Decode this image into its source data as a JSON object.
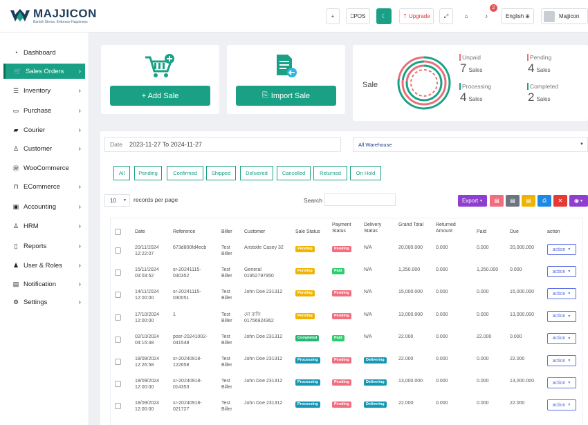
{
  "brand": {
    "title": "MAJJICON",
    "tagline": "Banish Stress, Embrace Happiness"
  },
  "topbar": {
    "plus": "+",
    "pos": "POS",
    "upgrade": "Upgrade",
    "notif_count": "2",
    "language": "English",
    "user": "Majjicon"
  },
  "sidebar": {
    "items": [
      {
        "label": "Dashboard",
        "icon": "dashboard-icon",
        "chev": ""
      },
      {
        "label": "Sales Orders",
        "icon": "cart-icon",
        "chev": "›"
      },
      {
        "label": "Inventory",
        "icon": "list-icon",
        "chev": "›"
      },
      {
        "label": "Purchase",
        "icon": "card-icon",
        "chev": "›"
      },
      {
        "label": "Courier",
        "icon": "truck-icon",
        "chev": "›"
      },
      {
        "label": "Customer",
        "icon": "user-icon",
        "chev": "›"
      },
      {
        "label": "WooCommerce",
        "icon": "wordpress-icon",
        "chev": ""
      },
      {
        "label": "ECommerce",
        "icon": "bag-icon",
        "chev": "›"
      },
      {
        "label": "Accounting",
        "icon": "briefcase-icon",
        "chev": "›"
      },
      {
        "label": "HRM",
        "icon": "users-icon",
        "chev": "›"
      },
      {
        "label": "Reports",
        "icon": "file-icon",
        "chev": "›"
      },
      {
        "label": "User & Roles",
        "icon": "person-icon",
        "chev": "›"
      },
      {
        "label": "Notification",
        "icon": "notification-icon",
        "chev": "›"
      },
      {
        "label": "Settings",
        "icon": "gear-icon",
        "chev": "›"
      }
    ]
  },
  "actions": {
    "add_sale": "+ Add Sale",
    "import_sale": "Import Sale"
  },
  "sale_summary": {
    "label": "Sale",
    "stats": [
      {
        "label": "Unpaid",
        "value": "7",
        "unit": "Sales",
        "color": "#e8707a"
      },
      {
        "label": "Pending",
        "value": "4",
        "unit": "Sales",
        "color": "#e8707a"
      },
      {
        "label": "Processing",
        "value": "4",
        "unit": "Sales",
        "color": "#1aa185"
      },
      {
        "label": "Completed",
        "value": "2",
        "unit": "Sales",
        "color": "#1aa185"
      }
    ]
  },
  "filters": {
    "date_label": "Date",
    "date_value": "2023-11-27 To 2024-11-27",
    "warehouse": "All Warehouse",
    "status_chips": [
      "All",
      "Pending",
      "Confirmed",
      "Shipped",
      "Delivered",
      "Cancelled",
      "Returned",
      "On Hold"
    ]
  },
  "table_controls": {
    "per_page": "10",
    "per_page_label": "records per page",
    "search_label": "Search",
    "export": "Export"
  },
  "table": {
    "headers": [
      "Date",
      "Reference",
      "Biller",
      "Customer",
      "Sale Status",
      "Payment Status",
      "Delivery Status",
      "Grand Total",
      "Returned Amount",
      "Paid",
      "Due",
      "action"
    ],
    "rows": [
      {
        "date": "20/11/2024 12:22:07",
        "ref": "673d800fd4ecb",
        "biller": "Test Biller",
        "customer": "Aristotle Casey 32",
        "sale": "Pending",
        "payment": "Pending",
        "delivery": "N/A",
        "total": "20,000.000",
        "returned": "0.000",
        "paid": "0.000",
        "due": "20,000.000",
        "action": "action"
      },
      {
        "date": "15/11/2024 03:03:52",
        "ref": "sr-20241115-030352",
        "biller": "Test Biller",
        "customer": "General 01952797950",
        "sale": "Pending",
        "payment": "Paid",
        "delivery": "N/A",
        "total": "1,250.000",
        "returned": "0.000",
        "paid": "1,250.000",
        "due": "0.000",
        "action": "action"
      },
      {
        "date": "14/11/2024 12:00:00",
        "ref": "sr-20241115-030051",
        "biller": "Test Biller",
        "customer": "John Doe 231312",
        "sale": "Pending",
        "payment": "Pending",
        "delivery": "N/A",
        "total": "15,000.000",
        "returned": "0.000",
        "paid": "0.000",
        "due": "15,000.000",
        "action": "action"
      },
      {
        "date": "17/10/2024 12:00:00",
        "ref": "1",
        "biller": "Test Biller",
        "customer": "মো রাফি 01756924362",
        "sale": "Pending",
        "payment": "Pending",
        "delivery": "N/A",
        "total": "13,000.000",
        "returned": "0.000",
        "paid": "0.000",
        "due": "13,000.000",
        "action": "action"
      },
      {
        "date": "02/10/2024 04:15:48",
        "ref": "posr-20241002-041548",
        "biller": "Test Biller",
        "customer": "John Doe 231312",
        "sale": "Completed",
        "payment": "Paid",
        "delivery": "N/A",
        "total": "22.000",
        "returned": "0.000",
        "paid": "22.000",
        "due": "0.000",
        "action": "action"
      },
      {
        "date": "18/09/2024 12:26:58",
        "ref": "sr-20240918-122658",
        "biller": "Test Biller",
        "customer": "John Doe 231312",
        "sale": "Processing",
        "payment": "Pending",
        "delivery": "Delivering",
        "total": "22.000",
        "returned": "0.000",
        "paid": "0.000",
        "due": "22.000",
        "action": "action"
      },
      {
        "date": "18/09/2024 12:00:00",
        "ref": "sr-20240918-014353",
        "biller": "Test Biller",
        "customer": "John Doe 231312",
        "sale": "Processing",
        "payment": "Pending",
        "delivery": "Delivering",
        "total": "13,000.000",
        "returned": "0.000",
        "paid": "0.000",
        "due": "13,000.000",
        "action": "action"
      },
      {
        "date": "18/09/2024 12:00:00",
        "ref": "sr-20240918-021727",
        "biller": "Test Biller",
        "customer": "John Doe 231312",
        "sale": "Processing",
        "payment": "Pending",
        "delivery": "Delivering",
        "total": "22.000",
        "returned": "0.000",
        "paid": "0.000",
        "due": "22.000",
        "action": "action"
      }
    ]
  },
  "colors": {
    "teal": "#1aa185",
    "pending_yellow": "#f0b400",
    "payment_pink": "#f26d7d",
    "paid_green": "#2ecc71",
    "processing_blue": "#1597b5",
    "completed_green": "#26b872",
    "delivering_blue": "#1597b5"
  }
}
